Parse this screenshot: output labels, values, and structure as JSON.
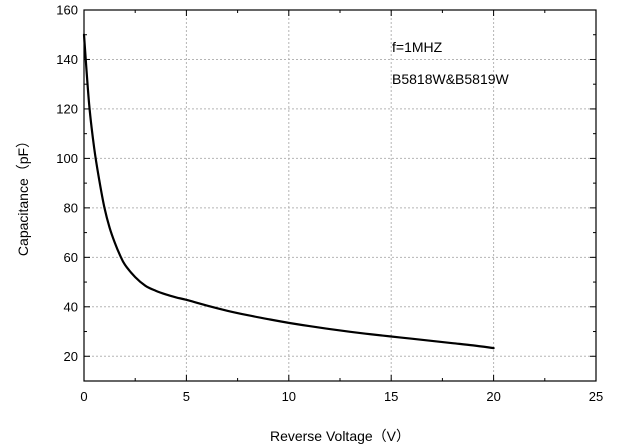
{
  "chart_data": {
    "type": "line",
    "xlabel": "Reverse Voltage（V）",
    "ylabel": "Capacitance（pF）",
    "xlim": [
      0,
      25
    ],
    "ylim": [
      10,
      160
    ],
    "x_ticks": [
      0,
      5,
      10,
      15,
      20,
      25
    ],
    "y_ticks": [
      20,
      40,
      60,
      80,
      100,
      120,
      140,
      160
    ],
    "grid": true,
    "annotations": [
      "f=1MHZ",
      "B5818W&B5819W"
    ],
    "series": [
      {
        "color": "#000000",
        "x": [
          0,
          0.25,
          0.5,
          0.75,
          1,
          1.25,
          1.5,
          1.75,
          2,
          2.5,
          3,
          3.5,
          4,
          4.5,
          5,
          6,
          7,
          8,
          9,
          10,
          11,
          12,
          13,
          14,
          15,
          16,
          17,
          18,
          19,
          20
        ],
        "y": [
          150,
          122,
          104,
          91,
          80,
          72,
          66,
          61,
          57,
          52,
          48.5,
          46.5,
          45,
          43.8,
          42.8,
          40.5,
          38.4,
          36.6,
          35,
          33.5,
          32.2,
          31,
          29.9,
          28.9,
          28,
          27.1,
          26.2,
          25.3,
          24.4,
          23.3
        ]
      }
    ]
  }
}
